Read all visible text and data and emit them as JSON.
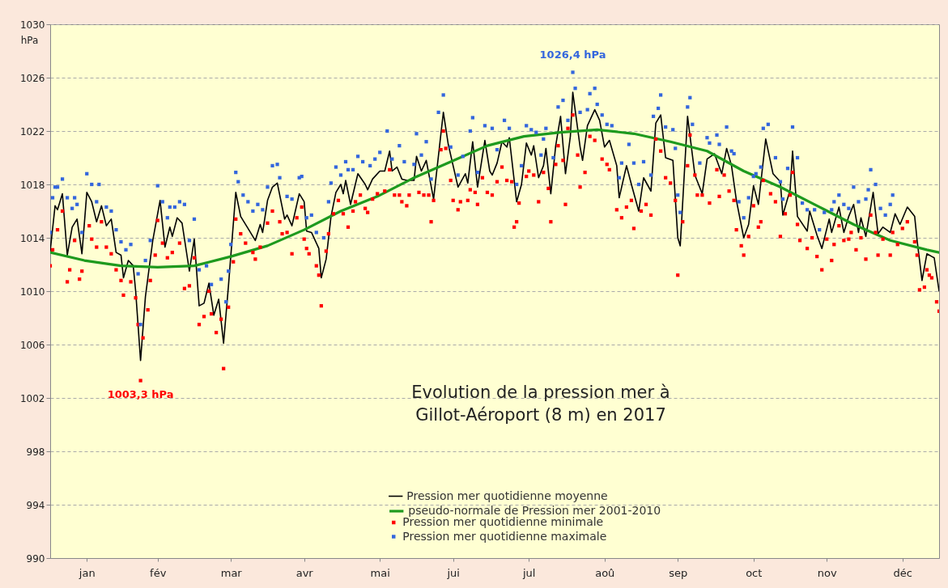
{
  "chart_data": {
    "type": "line",
    "title": "Evolution de la pression mer à Gillot-Aéroport (8 m) en 2017",
    "ylabel": "hPa",
    "xlim": [
      "--01-01",
      "--12-31"
    ],
    "xticks": [
      {
        "value": "--01-16",
        "label": "jan"
      },
      {
        "value": "--02-14",
        "label": "fév"
      },
      {
        "value": "--03-16",
        "label": "mar"
      },
      {
        "value": "--04-15",
        "label": "avr"
      },
      {
        "value": "--05-16",
        "label": "mai"
      },
      {
        "value": "--06-15",
        "label": "jui"
      },
      {
        "value": "--07-16",
        "label": "jul"
      },
      {
        "value": "--08-16",
        "label": "aoû"
      },
      {
        "value": "--09-15",
        "label": "sep"
      },
      {
        "value": "--10-16",
        "label": "oct"
      },
      {
        "value": "--11-15",
        "label": "nov"
      },
      {
        "value": "--12-16",
        "label": "déc"
      }
    ],
    "ylim": [
      990,
      1030
    ],
    "yticks": [
      990,
      994,
      998,
      1002,
      1006,
      1010,
      1014,
      1018,
      1022,
      1026,
      1030
    ],
    "grid": "y",
    "legend": "bottom",
    "annotations": [
      {
        "text": "1026,4 hPa",
        "x": "--08-03",
        "y": 1026.4
      },
      {
        "text": "1003,3 hPa",
        "x": "--02-07",
        "y": 1003.3
      }
    ],
    "series": [
      {
        "name": "Pression mer quotidienne moyenne",
        "color": "#000000",
        "x": [
          "--01-01",
          "--01-03",
          "--01-04",
          "--01-06",
          "--01-08",
          "--01-10",
          "--01-12",
          "--01-14",
          "--01-16",
          "--01-18",
          "--01-20",
          "--01-22",
          "--01-24",
          "--01-26",
          "--01-28",
          "--01-30",
          "--01-31",
          "--02-02",
          "--02-04",
          "--02-05",
          "--02-07",
          "--02-09",
          "--02-10",
          "--02-12",
          "--02-15",
          "--02-17",
          "--02-19",
          "--02-20",
          "--02-22",
          "--02-24",
          "--02-27",
          "--03-01",
          "--03-03",
          "--03-05",
          "--03-07",
          "--03-09",
          "--03-11",
          "--03-13",
          "--03-15",
          "--03-18",
          "--03-20",
          "--03-23",
          "--03-26",
          "--03-28",
          "--03-29",
          "--03-31",
          "--04-02",
          "--04-04",
          "--04-07",
          "--04-08",
          "--04-10",
          "--04-13",
          "--04-15",
          "--04-16",
          "--04-18",
          "--04-21",
          "--04-22",
          "--04-24",
          "--04-26",
          "--04-28",
          "--04-30",
          "--05-01",
          "--05-02",
          "--05-04",
          "--05-07",
          "--05-10",
          "--05-11",
          "--05-13",
          "--05-16",
          "--05-18",
          "--05-20",
          "--05-21",
          "--05-23",
          "--05-25",
          "--05-27",
          "--05-30",
          "--05-31",
          "--06-02",
          "--06-04",
          "--06-07",
          "--06-10",
          "--06-11",
          "--06-13",
          "--06-16",
          "--06-17",
          "--06-20",
          "--06-21",
          "--06-23",
          "--06-25",
          "--06-28",
          "--06-30",
          "--07-01",
          "--07-03",
          "--07-05",
          "--07-07",
          "--07-08",
          "--07-11",
          "--07-13",
          "--07-15",
          "--07-17",
          "--07-18",
          "--07-20",
          "--07-22",
          "--07-23",
          "--07-25",
          "--07-27",
          "--07-29",
          "--07-31",
          "--08-02",
          "--08-03",
          "--08-06",
          "--08-07",
          "--08-09",
          "--08-12",
          "--08-14",
          "--08-16",
          "--08-18",
          "--08-21",
          "--08-22",
          "--08-25",
          "--08-27",
          "--08-30",
          "--09-01",
          "--09-04",
          "--09-06",
          "--09-08",
          "--09-10",
          "--09-13",
          "--09-15",
          "--09-16",
          "--09-19",
          "--09-22",
          "--09-25",
          "--09-27",
          "--09-30",
          "--10-03",
          "--10-05",
          "--10-07",
          "--10-09",
          "--10-12",
          "--10-14",
          "--10-16",
          "--10-18",
          "--10-21",
          "--10-24",
          "--10-27",
          "--10-28",
          "--10-31",
          "--11-01",
          "--11-03",
          "--11-07",
          "--11-08",
          "--11-11",
          "--11-13",
          "--11-16",
          "--11-17",
          "--11-20",
          "--11-22",
          "--11-24",
          "--11-26",
          "--11-28",
          "--11-29",
          "--12-01",
          "--12-04",
          "--12-06",
          "--12-08",
          "--12-11",
          "--12-13",
          "--12-15",
          "--12-18",
          "--12-21",
          "--12-22",
          "--12-24",
          "--12-26",
          "--12-28",
          "--12-29",
          "--12-31"
        ],
        "values": [
          1013.0,
          1016.4,
          1016.1,
          1017.3,
          1012.7,
          1014.8,
          1015.4,
          1012.8,
          1017.4,
          1016.7,
          1015.2,
          1016.4,
          1014.9,
          1015.4,
          1012.9,
          1012.7,
          1011.0,
          1012.3,
          1011.9,
          1010.0,
          1004.8,
          1009.6,
          1011.0,
          1013.8,
          1016.8,
          1013.3,
          1014.8,
          1014.1,
          1015.5,
          1015.1,
          1011.5,
          1013.9,
          1008.9,
          1009.1,
          1010.6,
          1008.2,
          1009.4,
          1006.1,
          1010.4,
          1017.4,
          1015.6,
          1014.7,
          1013.8,
          1015.0,
          1014.4,
          1016.8,
          1017.8,
          1018.1,
          1015.4,
          1015.7,
          1014.9,
          1017.3,
          1016.7,
          1014.5,
          1014.4,
          1013.2,
          1011.0,
          1012.4,
          1015.6,
          1017.4,
          1018.0,
          1017.3,
          1018.3,
          1016.5,
          1018.8,
          1018.0,
          1017.6,
          1018.4,
          1019.0,
          1019.0,
          1020.5,
          1019.0,
          1019.3,
          1018.4,
          1018.3,
          1018.3,
          1020.1,
          1019.0,
          1019.8,
          1016.9,
          1021.8,
          1023.4,
          1021.0,
          1018.6,
          1017.8,
          1018.8,
          1018.1,
          1021.2,
          1017.8,
          1021.3,
          1019.0,
          1018.7,
          1019.6,
          1021.2,
          1020.8,
          1021.5,
          1016.7,
          1018.0,
          1021.1,
          1020.2,
          1020.9,
          1018.5,
          1019.4,
          1020.7,
          1017.3,
          1020.9,
          1023.1,
          1018.8,
          1021.6,
          1024.9,
          1020.8,
          1019.8,
          1022.4,
          1023.6,
          1022.8,
          1020.8,
          1021.3,
          1019.4,
          1017.0,
          1019.4,
          1018.0,
          1016.0,
          1018.5,
          1017.5,
          1022.6,
          1023.2,
          1020.0,
          1019.8,
          1014.0,
          1013.4,
          1023.1,
          1018.7,
          1017.3,
          1019.9,
          1020.3,
          1018.8,
          1020.7,
          1019.4,
          1016.8,
          1014.0,
          1015.0,
          1017.9,
          1016.5,
          1021.4,
          1018.8,
          1018.2,
          1015.7,
          1017.6,
          1020.5,
          1015.6,
          1014.5,
          1016.0,
          1014.2,
          1013.2,
          1015.4,
          1014.4,
          1016.3,
          1014.4,
          1015.6,
          1016.5,
          1014.4,
          1015.5,
          1014.1,
          1017.4,
          1014.3,
          1014.8,
          1014.4,
          1015.8,
          1015.0,
          1016.3,
          1015.6,
          1013.8,
          1010.8,
          1012.8,
          1012.6,
          1012.5,
          1010.0
        ]
      },
      {
        "name": "pseudo-normale de Pression mer  2001-2010",
        "color": "#1e9a1e",
        "x": [
          "--01-01",
          "--01-15",
          "--01-30",
          "--02-14",
          "--03-01",
          "--03-16",
          "--03-31",
          "--04-15",
          "--04-30",
          "--05-15",
          "--05-30",
          "--06-14",
          "--06-29",
          "--07-14",
          "--07-29",
          "--08-13",
          "--08-28",
          "--09-12",
          "--09-27",
          "--10-12",
          "--10-27",
          "--11-11",
          "--11-26",
          "--12-11",
          "--12-26",
          "--12-31"
        ],
        "values": [
          1012.9,
          1012.3,
          1011.9,
          1011.8,
          1011.9,
          1012.6,
          1013.4,
          1014.6,
          1016.0,
          1017.1,
          1018.5,
          1019.7,
          1020.9,
          1021.6,
          1021.9,
          1022.1,
          1021.8,
          1021.2,
          1020.5,
          1019.0,
          1017.8,
          1016.4,
          1015.0,
          1013.8,
          1013.1,
          1012.9
        ]
      },
      {
        "name": "Pression mer quotidienne minimale",
        "type": "scatter",
        "marker": "square",
        "color": "#ff0000",
        "x": [
          "--01-01",
          "--01-02",
          "--01-04",
          "--01-06",
          "--01-08",
          "--01-09",
          "--01-11",
          "--01-13",
          "--01-14",
          "--01-17",
          "--01-18",
          "--01-20",
          "--01-22",
          "--01-24",
          "--01-26",
          "--01-28",
          "--01-30",
          "--01-31",
          "--02-03",
          "--02-05",
          "--02-06",
          "--02-07",
          "--02-08",
          "--02-10",
          "--02-11",
          "--02-13",
          "--02-14",
          "--02-16",
          "--02-18",
          "--02-20",
          "--02-23",
          "--02-25",
          "--02-27",
          "--03-01",
          "--03-03",
          "--03-05",
          "--03-07",
          "--03-08",
          "--03-10",
          "--03-12",
          "--03-13",
          "--03-15",
          "--03-17",
          "--03-18",
          "--03-20",
          "--03-22",
          "--03-25",
          "--03-26",
          "--03-28",
          "--03-31",
          "--04-02",
          "--04-05",
          "--04-06",
          "--04-08",
          "--04-10",
          "--04-12",
          "--04-14",
          "--04-15",
          "--04-16",
          "--04-17",
          "--04-20",
          "--04-21",
          "--04-22",
          "--04-24",
          "--04-25",
          "--04-27",
          "--04-29",
          "--05-01",
          "--05-03",
          "--05-05",
          "--05-06",
          "--05-08",
          "--05-10",
          "--05-11",
          "--05-13",
          "--05-15",
          "--05-18",
          "--05-20",
          "--05-22",
          "--05-24",
          "--05-25",
          "--05-27",
          "--05-28",
          "--06-01",
          "--06-03",
          "--06-05",
          "--06-06",
          "--06-07",
          "--06-10",
          "--06-11",
          "--06-12",
          "--06-14",
          "--06-15",
          "--06-17",
          "--06-18",
          "--06-21",
          "--06-22",
          "--06-24",
          "--06-25",
          "--06-27",
          "--06-29",
          "--07-01",
          "--07-03",
          "--07-05",
          "--07-07",
          "--07-09",
          "--07-10",
          "--07-11",
          "--07-12",
          "--07-15",
          "--07-16",
          "--07-18",
          "--07-20",
          "--07-22",
          "--07-24",
          "--07-25",
          "--07-27",
          "--07-28",
          "--07-30",
          "--07-31",
          "--08-01",
          "--08-03",
          "--08-05",
          "--08-06",
          "--08-08",
          "--08-10",
          "--08-12",
          "--08-15",
          "--08-17",
          "--08-18",
          "--08-21",
          "--08-23",
          "--08-25",
          "--08-27",
          "--08-28",
          "--08-31",
          "--09-02",
          "--09-04",
          "--09-06",
          "--09-08",
          "--09-10",
          "--09-12",
          "--09-14",
          "--09-15",
          "--09-17",
          "--09-19",
          "--09-20",
          "--09-22",
          "--09-23",
          "--09-25",
          "--09-28",
          "--10-01",
          "--10-02",
          "--10-04",
          "--10-06",
          "--10-08",
          "--10-09",
          "--10-11",
          "--10-12",
          "--10-14",
          "--10-16",
          "--10-18",
          "--10-19",
          "--10-20",
          "--10-23",
          "--10-25",
          "--10-27",
          "--10-29",
          "--10-31",
          "--11-01",
          "--11-03",
          "--11-04",
          "--11-07",
          "--11-09",
          "--11-11",
          "--11-13",
          "--11-15",
          "--11-17",
          "--11-18",
          "--11-20",
          "--11-22",
          "--11-24",
          "--11-25",
          "--11-27",
          "--11-29",
          "--12-01",
          "--12-03",
          "--12-05",
          "--12-06",
          "--12-08",
          "--12-11",
          "--12-12",
          "--12-14",
          "--12-16",
          "--12-18",
          "--12-21",
          "--12-22",
          "--12-23",
          "--12-25",
          "--12-26",
          "--12-27",
          "--12-28",
          "--12-30",
          "--12-31"
        ],
        "values": [
          1011.9,
          1013.1,
          1014.6,
          1016.0,
          1010.7,
          1011.6,
          1013.8,
          1010.9,
          1011.5,
          1014.9,
          1013.9,
          1013.3,
          1015.2,
          1013.3,
          1012.8,
          1011.6,
          1010.8,
          1009.7,
          1010.7,
          1009.5,
          1007.5,
          1003.3,
          1006.5,
          1008.6,
          1010.8,
          1012.7,
          1015.3,
          1013.6,
          1012.5,
          1012.9,
          1013.6,
          1010.2,
          1010.4,
          1012.5,
          1007.5,
          1008.1,
          1010.0,
          1008.3,
          1006.9,
          1007.9,
          1004.2,
          1008.8,
          1012.2,
          1015.4,
          1014.3,
          1013.6,
          1012.9,
          1012.4,
          1013.3,
          1015.1,
          1016.0,
          1015.2,
          1014.3,
          1014.4,
          1012.8,
          1015.5,
          1016.3,
          1013.9,
          1013.2,
          1012.8,
          1011.9,
          1011.2,
          1008.9,
          1013.0,
          1014.3,
          1015.8,
          1016.8,
          1015.8,
          1014.8,
          1016.0,
          1016.7,
          1017.2,
          1016.2,
          1015.9,
          1016.9,
          1017.3,
          1017.5,
          1019.1,
          1017.2,
          1017.2,
          1016.7,
          1016.4,
          1017.2,
          1017.4,
          1017.2,
          1017.2,
          1015.2,
          1016.8,
          1020.6,
          1022.0,
          1020.7,
          1018.3,
          1016.8,
          1016.1,
          1016.7,
          1016.8,
          1017.6,
          1017.4,
          1016.5,
          1018.5,
          1017.4,
          1017.2,
          1018.2,
          1019.3,
          1018.3,
          1018.2,
          1014.8,
          1015.2,
          1016.6,
          1018.6,
          1019.0,
          1018.7,
          1016.7,
          1018.9,
          1017.7,
          1015.2,
          1019.5,
          1020.9,
          1019.8,
          1016.5,
          1022.2,
          1023.2,
          1020.2,
          1017.8,
          1018.9,
          1021.6,
          1021.3,
          1019.9,
          1019.5,
          1019.1,
          1016.1,
          1015.5,
          1016.3,
          1016.8,
          1014.7,
          1016.0,
          1016.5,
          1015.7,
          1021.4,
          1020.5,
          1018.5,
          1018.1,
          1016.8,
          1011.2,
          1015.2,
          1019.4,
          1021.7,
          1018.7,
          1017.2,
          1017.2,
          1016.6,
          1019.1,
          1017.1,
          1018.7,
          1017.5,
          1016.8,
          1014.6,
          1013.4,
          1012.7,
          1014.1,
          1016.4,
          1014.8,
          1015.2,
          1018.3,
          1017.3,
          1016.7,
          1014.1,
          1015.8,
          1017.2,
          1018.9,
          1015.0,
          1013.8,
          1013.2,
          1014.0,
          1012.6,
          1011.6,
          1013.9,
          1012.3,
          1013.5,
          1014.9,
          1013.8,
          1013.9,
          1014.4,
          1013.1,
          1014.0,
          1012.4,
          1015.7,
          1014.4,
          1012.7,
          1013.9,
          1012.7,
          1014.4,
          1013.5,
          1014.7,
          1015.2,
          1013.7,
          1012.7,
          1010.1,
          1010.3,
          1011.6,
          1011.2,
          1011.0,
          1009.2,
          1008.5
        ]
      },
      {
        "name": "Pression mer quotidienne maximale",
        "type": "scatter",
        "marker": "square",
        "color": "#3366dd",
        "x": [
          "--01-01",
          "--01-02",
          "--01-03",
          "--01-04",
          "--01-06",
          "--01-08",
          "--01-10",
          "--01-11",
          "--01-12",
          "--01-14",
          "--01-16",
          "--01-18",
          "--01-20",
          "--01-21",
          "--01-24",
          "--01-26",
          "--01-28",
          "--01-30",
          "--02-01",
          "--02-03",
          "--02-06",
          "--02-07",
          "--02-09",
          "--02-11",
          "--02-14",
          "--02-16",
          "--02-18",
          "--02-19",
          "--02-21",
          "--02-23",
          "--02-25",
          "--02-27",
          "--03-01",
          "--03-03",
          "--03-06",
          "--03-08",
          "--03-12",
          "--03-14",
          "--03-15",
          "--03-16",
          "--03-18",
          "--03-19",
          "--03-21",
          "--03-23",
          "--03-25",
          "--03-27",
          "--03-29",
          "--03-31",
          "--04-02",
          "--04-04",
          "--04-05",
          "--04-08",
          "--04-10",
          "--04-13",
          "--04-14",
          "--04-16",
          "--04-18",
          "--04-20",
          "--04-23",
          "--04-25",
          "--04-26",
          "--04-28",
          "--04-30",
          "--05-02",
          "--05-03",
          "--05-05",
          "--05-07",
          "--05-09",
          "--05-12",
          "--05-14",
          "--05-16",
          "--05-19",
          "--05-21",
          "--05-24",
          "--05-26",
          "--05-30",
          "--05-31",
          "--06-02",
          "--06-04",
          "--06-06",
          "--06-09",
          "--06-11",
          "--06-14",
          "--06-17",
          "--06-19",
          "--06-22",
          "--06-23",
          "--06-25",
          "--06-28",
          "--07-01",
          "--07-03",
          "--07-06",
          "--07-08",
          "--07-11",
          "--07-13",
          "--07-15",
          "--07-17",
          "--07-19",
          "--07-21",
          "--07-22",
          "--07-23",
          "--07-26",
          "--07-28",
          "--07-30",
          "--08-01",
          "--08-03",
          "--08-04",
          "--08-06",
          "--08-09",
          "--08-10",
          "--08-12",
          "--08-13",
          "--08-15",
          "--08-17",
          "--08-19",
          "--08-22",
          "--08-23",
          "--08-26",
          "--08-28",
          "--08-30",
          "--09-01",
          "--09-04",
          "--09-05",
          "--09-07",
          "--09-08",
          "--09-10",
          "--09-13",
          "--09-14",
          "--09-15",
          "--09-16",
          "--09-19",
          "--09-20",
          "--09-21",
          "--09-24",
          "--09-27",
          "--09-28",
          "--10-01",
          "--10-02",
          "--10-05",
          "--10-07",
          "--10-08",
          "--10-10",
          "--10-12",
          "--10-14",
          "--10-16",
          "--10-17",
          "--10-19",
          "--10-20",
          "--10-22",
          "--10-25",
          "--10-27",
          "--10-28",
          "--10-30",
          "--11-01",
          "--11-03",
          "--11-05",
          "--11-07",
          "--11-10",
          "--11-12",
          "--11-14",
          "--11-17",
          "--11-18",
          "--11-20",
          "--11-22",
          "--11-24",
          "--11-26",
          "--11-28",
          "--12-01",
          "--12-02",
          "--12-03",
          "--12-05",
          "--12-07",
          "--12-09",
          "--12-11",
          "--12-12"
        ],
        "values": [
          1014.4,
          1017.0,
          1017.8,
          1017.8,
          1018.4,
          1017.0,
          1016.2,
          1017.0,
          1016.5,
          1014.4,
          1018.8,
          1018.0,
          1016.7,
          1018.0,
          1016.3,
          1016.0,
          1014.6,
          1013.7,
          1013.1,
          1013.5,
          1011.3,
          1007.5,
          1012.3,
          1013.8,
          1017.9,
          1016.7,
          1015.5,
          1016.3,
          1016.3,
          1016.7,
          1016.5,
          1013.8,
          1015.4,
          1011.6,
          1011.9,
          1010.5,
          1010.9,
          1009.2,
          1011.5,
          1013.5,
          1018.9,
          1018.2,
          1017.2,
          1016.7,
          1016.0,
          1016.5,
          1016.1,
          1017.8,
          1019.4,
          1019.5,
          1018.5,
          1017.1,
          1016.9,
          1018.5,
          1018.6,
          1015.5,
          1015.7,
          1014.4,
          1014.0,
          1016.7,
          1018.1,
          1019.3,
          1018.7,
          1019.7,
          1019.1,
          1019.1,
          1020.1,
          1019.7,
          1019.4,
          1019.9,
          1020.4,
          1022.0,
          1019.9,
          1020.9,
          1019.7,
          1019.5,
          1021.8,
          1020.2,
          1021.2,
          1018.4,
          1023.4,
          1024.7,
          1020.8,
          1018.7,
          1020.1,
          1022.0,
          1023.0,
          1018.9,
          1022.4,
          1022.2,
          1020.6,
          1022.8,
          1022.2,
          1018.0,
          1019.4,
          1022.4,
          1022.1,
          1021.9,
          1020.2,
          1021.4,
          1022.2,
          1020.0,
          1023.8,
          1024.3,
          1022.8,
          1026.4,
          1025.2,
          1023.4,
          1023.6,
          1024.8,
          1025.2,
          1024.0,
          1023.2,
          1022.5,
          1022.4,
          1018.5,
          1019.6,
          1021.0,
          1019.6,
          1018.0,
          1019.7,
          1018.7,
          1023.1,
          1023.7,
          1024.7,
          1022.3,
          1022.1,
          1020.7,
          1017.2,
          1015.9,
          1023.8,
          1024.5,
          1022.5,
          1019.6,
          1021.5,
          1021.1,
          1021.7,
          1021.0,
          1022.3,
          1020.5,
          1020.3,
          1016.7,
          1015.5,
          1017.0,
          1018.6,
          1018.8,
          1019.3,
          1022.2,
          1022.5,
          1020.0,
          1018.2,
          1016.9,
          1019.2,
          1022.3,
          1020.0,
          1016.6,
          1016.1,
          1016.1,
          1014.6,
          1015.9,
          1016.1,
          1016.7,
          1017.2,
          1016.5,
          1016.2,
          1017.8,
          1016.7,
          1016.9,
          1017.6,
          1019.1,
          1018.0,
          1016.2,
          1015.7,
          1016.5,
          1017.2
        ]
      }
    ]
  }
}
